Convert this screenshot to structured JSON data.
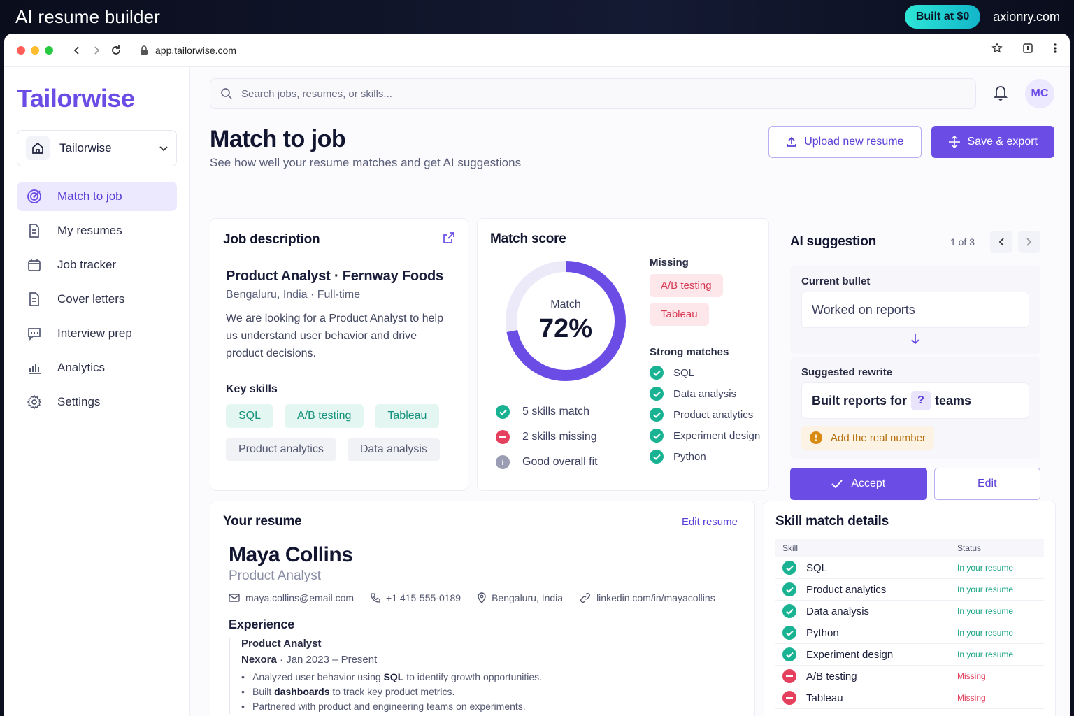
{
  "banner": {
    "title": "AI resume builder",
    "pill": "Built at $0",
    "site": "axionry.com"
  },
  "browser": {
    "url": "app.tailorwise.com"
  },
  "colors": {
    "brand": "#6b4de6",
    "success": "#19b394",
    "danger": "#e5415f",
    "warning": "#d98a12"
  },
  "sidebar": {
    "logo": "Tailorwise",
    "workspace": "Tailorwise",
    "items": [
      {
        "label": "Match to job",
        "icon": "target-icon"
      },
      {
        "label": "My resumes",
        "icon": "document-icon"
      },
      {
        "label": "Job tracker",
        "icon": "calendar-icon"
      },
      {
        "label": "Cover letters",
        "icon": "document-icon"
      },
      {
        "label": "Interview prep",
        "icon": "chat-icon"
      },
      {
        "label": "Analytics",
        "icon": "bar-chart-icon"
      },
      {
        "label": "Settings",
        "icon": "gear-icon"
      }
    ]
  },
  "topbar": {
    "search_placeholder": "Search jobs, resumes, or skills...",
    "avatar": "MC"
  },
  "header": {
    "title": "Match to job",
    "subtitle": "See how well your resume matches and get AI suggestions",
    "upload_label": "Upload new resume",
    "save_label": "Save & export"
  },
  "job": {
    "title": "Job description",
    "role": "Product Analyst · Fernway Foods",
    "location": "Bengaluru, India · Full-time",
    "description": "We are looking for a Product Analyst to help us understand user behavior and drive product decisions.",
    "key_skills_label": "Key skills",
    "tags": [
      "SQL",
      "A/B testing",
      "Tableau",
      "Product analytics",
      "Data analysis"
    ]
  },
  "match": {
    "title": "Match score",
    "donut_label": "Match",
    "score_text": "72%",
    "score": 0.72,
    "summary": [
      "5 skills match",
      "2 skills missing",
      "Good overall fit"
    ],
    "missing_label": "Missing",
    "missing": [
      "A/B testing",
      "Tableau"
    ],
    "strong_label": "Strong matches",
    "strong": [
      "SQL",
      "Data analysis",
      "Product analytics",
      "Experiment design",
      "Python"
    ]
  },
  "ai": {
    "title": "AI suggestion",
    "count": "1 of 3",
    "current_label": "Current bullet",
    "current": "Worked on reports",
    "suggested_label": "Suggested rewrite",
    "suggested_before": "Built reports for",
    "placeholder": "?",
    "suggested_after": "teams",
    "warning": "Add the real number",
    "accept_label": "Accept",
    "edit_label": "Edit"
  },
  "resume": {
    "title": "Your resume",
    "edit_label": "Edit resume",
    "name": "Maya Collins",
    "headline": "Product Analyst",
    "email": "maya.collins@email.com",
    "phone": "+1 415-555-0189",
    "location": "Bengaluru, India",
    "linkedin": "linkedin.com/in/mayacollins",
    "experience_label": "Experience",
    "role": "Product Analyst",
    "company": "Nexora",
    "dates": " · Jan 2023 – Present",
    "bullets": [
      {
        "before": "Analyzed user behavior using ",
        "bold": "SQL",
        "after": " to identify growth opportunities."
      },
      {
        "before": "Built ",
        "bold": "dashboards",
        "after": " to track key product metrics."
      },
      {
        "before": "Partnered with product and engineering teams on experiments.",
        "bold": "",
        "after": ""
      }
    ]
  },
  "skills": {
    "title": "Skill match details",
    "col_skill": "Skill",
    "col_status": "Status",
    "rows": [
      {
        "skill": "SQL",
        "status": "In your resume",
        "ok": true
      },
      {
        "skill": "Product analytics",
        "status": "In your resume",
        "ok": true
      },
      {
        "skill": "Data analysis",
        "status": "In your resume",
        "ok": true
      },
      {
        "skill": "Python",
        "status": "In your resume",
        "ok": true
      },
      {
        "skill": "Experiment design",
        "status": "In your resume",
        "ok": true
      },
      {
        "skill": "A/B testing",
        "status": "Missing",
        "ok": false
      },
      {
        "skill": "Tableau",
        "status": "Missing",
        "ok": false
      }
    ]
  }
}
